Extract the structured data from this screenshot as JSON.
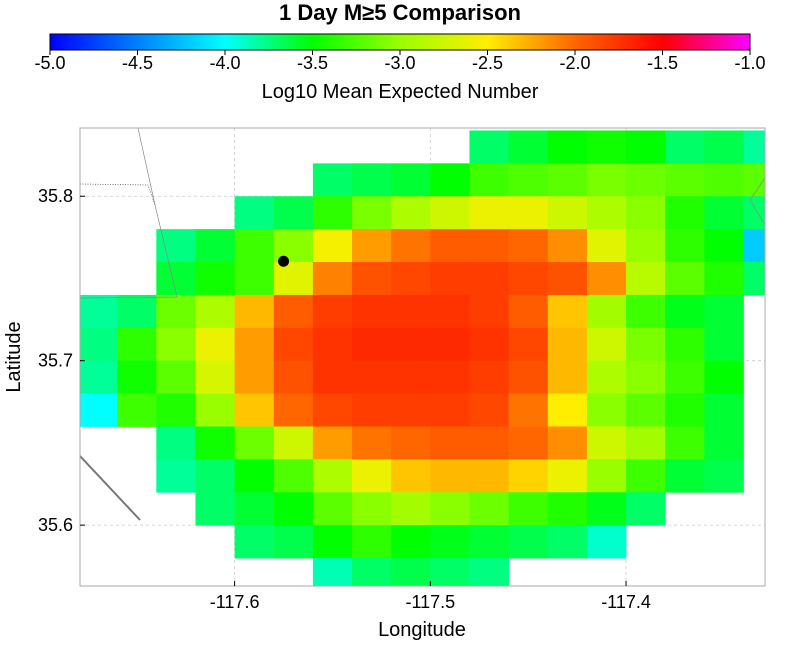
{
  "chart_data": {
    "type": "heatmap",
    "title": "1 Day M≥5 Comparison",
    "xlabel": "Longitude",
    "ylabel": "Latitude",
    "colorbar": {
      "label": "Log10 Mean Expected Number",
      "range": [
        -5.0,
        -1.0
      ],
      "ticks": [
        "-5.0",
        "-4.5",
        "-4.0",
        "-3.5",
        "-3.0",
        "-2.5",
        "-2.0",
        "-1.5",
        "-1.0"
      ],
      "tick_values": [
        -5.0,
        -4.5,
        -4.0,
        -3.5,
        -3.0,
        -2.5,
        -2.0,
        -1.5,
        -1.0
      ],
      "colorscale": [
        "#0000ff",
        "#00ffff",
        "#00ff00",
        "#ffff00",
        "#ff0000",
        "#ff00ff"
      ]
    },
    "xlim": [
      -117.679,
      -117.329
    ],
    "ylim": [
      35.563,
      35.8415
    ],
    "xticks": [
      -117.6,
      -117.5,
      -117.4
    ],
    "xtick_labels": [
      "-117.6",
      "-117.5",
      "-117.4"
    ],
    "yticks": [
      35.6,
      35.7,
      35.8
    ],
    "ytick_labels": [
      "35.6",
      "35.7",
      "35.8"
    ],
    "grid": true,
    "cell_size_deg": 0.02,
    "cells_x_start": -117.68,
    "rows": [
      {
        "lat": 35.83,
        "start": 10,
        "values": [
          -3.7,
          -3.6,
          -3.5,
          -3.45,
          -3.5,
          -3.7,
          -3.65,
          -3.8
        ]
      },
      {
        "lat": 35.81,
        "start": 6,
        "values": [
          -3.7,
          -3.65,
          -3.6,
          -3.5,
          -3.3,
          -3.25,
          -3.2,
          -3.1,
          -3.15,
          -3.2,
          -3.25,
          -3.2,
          -3.45,
          -3.6
        ]
      },
      {
        "lat": 35.79,
        "start": 4,
        "values": [
          -3.75,
          -3.65,
          -3.35,
          -3.1,
          -2.9,
          -2.75,
          -2.6,
          -2.6,
          -2.75,
          -2.9,
          -3.05,
          -3.4,
          -3.6,
          -3.7
        ]
      },
      {
        "lat": 35.77,
        "start": 2,
        "values": [
          -3.75,
          -3.6,
          -3.3,
          -3.05,
          -2.55,
          -2.2,
          -2.05,
          -1.95,
          -1.95,
          -2.0,
          -2.15,
          -2.65,
          -3.0,
          -3.35,
          -3.5,
          -4.2
        ]
      },
      {
        "lat": 35.75,
        "start": 2,
        "values": [
          -3.6,
          -3.45,
          -3.3,
          -2.65,
          -2.1,
          -1.9,
          -1.85,
          -1.8,
          -1.8,
          -1.85,
          -1.9,
          -2.15,
          -2.85,
          -3.2,
          -3.4,
          -3.7
        ]
      },
      {
        "lat": 35.73,
        "start": 0,
        "values": [
          -3.8,
          -3.7,
          -3.15,
          -2.9,
          -2.3,
          -1.95,
          -1.8,
          -1.75,
          -1.75,
          -1.75,
          -1.8,
          -1.95,
          -2.35,
          -2.95,
          -3.3,
          -3.55,
          -3.6
        ]
      },
      {
        "lat": 35.71,
        "start": 0,
        "values": [
          -3.75,
          -3.35,
          -3.05,
          -2.6,
          -2.2,
          -1.85,
          -1.75,
          -1.7,
          -1.7,
          -1.7,
          -1.75,
          -1.85,
          -2.3,
          -2.75,
          -3.1,
          -3.35,
          -3.6
        ]
      },
      {
        "lat": 35.69,
        "start": 0,
        "values": [
          -3.8,
          -3.45,
          -3.2,
          -2.7,
          -2.2,
          -1.9,
          -1.75,
          -1.75,
          -1.75,
          -1.75,
          -1.8,
          -1.9,
          -2.3,
          -2.9,
          -3.05,
          -3.3,
          -3.5
        ]
      },
      {
        "lat": 35.67,
        "start": 0,
        "values": [
          -4.0,
          -3.3,
          -3.4,
          -3.0,
          -2.35,
          -2.0,
          -1.85,
          -1.8,
          -1.8,
          -1.8,
          -1.85,
          -2.05,
          -2.5,
          -3.05,
          -3.2,
          -3.4,
          -3.6
        ]
      },
      {
        "lat": 35.65,
        "start": 2,
        "values": [
          -3.75,
          -3.45,
          -3.15,
          -2.75,
          -2.2,
          -2.05,
          -2.0,
          -1.95,
          -1.95,
          -2.0,
          -2.15,
          -2.75,
          -2.95,
          -3.3,
          -3.6
        ]
      },
      {
        "lat": 35.63,
        "start": 2,
        "values": [
          -3.8,
          -3.7,
          -3.5,
          -3.25,
          -2.9,
          -2.6,
          -2.35,
          -2.3,
          -2.3,
          -2.4,
          -2.6,
          -3.0,
          -3.3,
          -3.6,
          -3.65
        ]
      },
      {
        "lat": 35.61,
        "start": 3,
        "values": [
          -3.7,
          -3.6,
          -3.5,
          -3.2,
          -3.05,
          -2.95,
          -3.05,
          -3.15,
          -3.3,
          -3.4,
          -3.55,
          -3.7
        ]
      },
      {
        "lat": 35.59,
        "start": 4,
        "values": [
          -3.7,
          -3.65,
          -3.5,
          -3.35,
          -3.5,
          -3.55,
          -3.6,
          -3.65,
          -3.7,
          -3.9
        ]
      },
      {
        "lat": 35.57,
        "start": 6,
        "values": [
          -3.85,
          -3.7,
          -3.65,
          -3.7,
          -3.75
        ]
      }
    ],
    "marker": {
      "lon": -117.575,
      "lat": 35.7605
    }
  }
}
